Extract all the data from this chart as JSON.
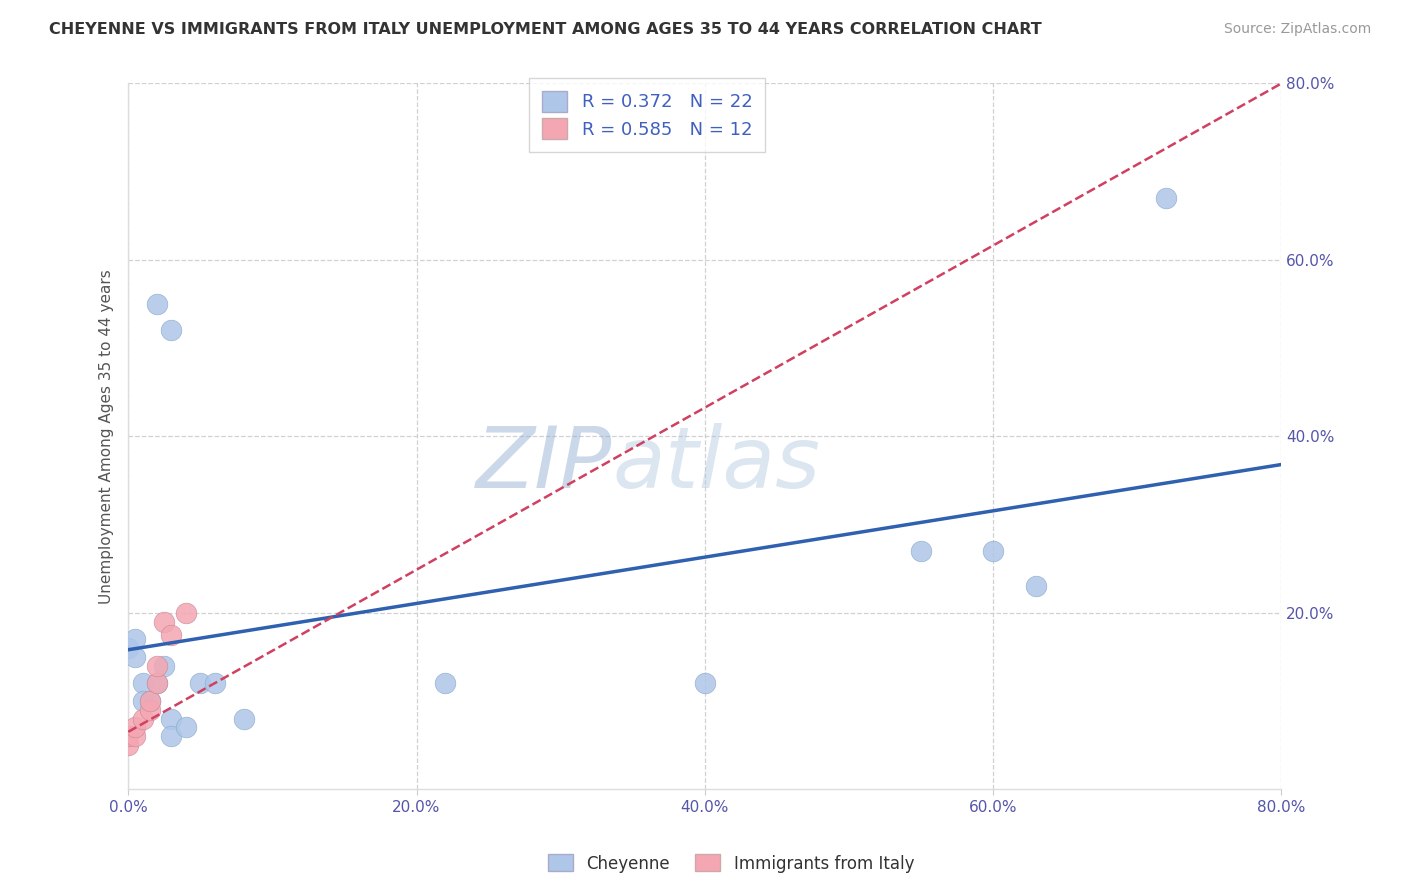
{
  "title": "CHEYENNE VS IMMIGRANTS FROM ITALY UNEMPLOYMENT AMONG AGES 35 TO 44 YEARS CORRELATION CHART",
  "source": "Source: ZipAtlas.com",
  "ylabel": "Unemployment Among Ages 35 to 44 years",
  "xlim": [
    0.0,
    0.8
  ],
  "ylim": [
    0.0,
    0.8
  ],
  "xtick_labels": [
    "0.0%",
    "20.0%",
    "40.0%",
    "60.0%",
    "80.0%"
  ],
  "xtick_vals": [
    0.0,
    0.2,
    0.4,
    0.6,
    0.8
  ],
  "ytick_labels": [
    "20.0%",
    "40.0%",
    "60.0%",
    "80.0%"
  ],
  "ytick_vals": [
    0.2,
    0.4,
    0.6,
    0.8
  ],
  "cheyenne_R": "0.372",
  "cheyenne_N": "22",
  "italy_R": "0.585",
  "italy_N": "12",
  "cheyenne_color": "#aec6e8",
  "italy_color": "#f4a7b2",
  "cheyenne_line_color": "#3060b0",
  "italy_line_color": "#d04060",
  "cheyenne_points": [
    [
      0.0,
      0.16
    ],
    [
      0.005,
      0.17
    ],
    [
      0.005,
      0.15
    ],
    [
      0.01,
      0.12
    ],
    [
      0.01,
      0.1
    ],
    [
      0.015,
      0.1
    ],
    [
      0.02,
      0.12
    ],
    [
      0.025,
      0.14
    ],
    [
      0.03,
      0.08
    ],
    [
      0.03,
      0.06
    ],
    [
      0.04,
      0.07
    ],
    [
      0.05,
      0.12
    ],
    [
      0.06,
      0.12
    ],
    [
      0.08,
      0.08
    ],
    [
      0.22,
      0.12
    ],
    [
      0.4,
      0.12
    ],
    [
      0.55,
      0.27
    ],
    [
      0.6,
      0.27
    ],
    [
      0.63,
      0.23
    ],
    [
      0.72,
      0.67
    ],
    [
      0.02,
      0.55
    ],
    [
      0.03,
      0.52
    ]
  ],
  "italy_points": [
    [
      0.0,
      0.05
    ],
    [
      0.0,
      0.06
    ],
    [
      0.005,
      0.06
    ],
    [
      0.005,
      0.07
    ],
    [
      0.01,
      0.08
    ],
    [
      0.015,
      0.09
    ],
    [
      0.015,
      0.1
    ],
    [
      0.02,
      0.12
    ],
    [
      0.02,
      0.14
    ],
    [
      0.025,
      0.19
    ],
    [
      0.03,
      0.175
    ],
    [
      0.04,
      0.2
    ]
  ],
  "cheyenne_trend_x": [
    0.0,
    0.8
  ],
  "cheyenne_trend_y": [
    0.158,
    0.368
  ],
  "italy_trend_x": [
    0.0,
    0.8
  ],
  "italy_trend_y": [
    0.065,
    0.8
  ],
  "grid_color": "#cccccc",
  "bg_color": "#ffffff",
  "legend_label_cheyenne": "Cheyenne",
  "legend_label_italy": "Immigrants from Italy",
  "r_color": "#4060c0",
  "watermark_color": "#c5d5e5"
}
